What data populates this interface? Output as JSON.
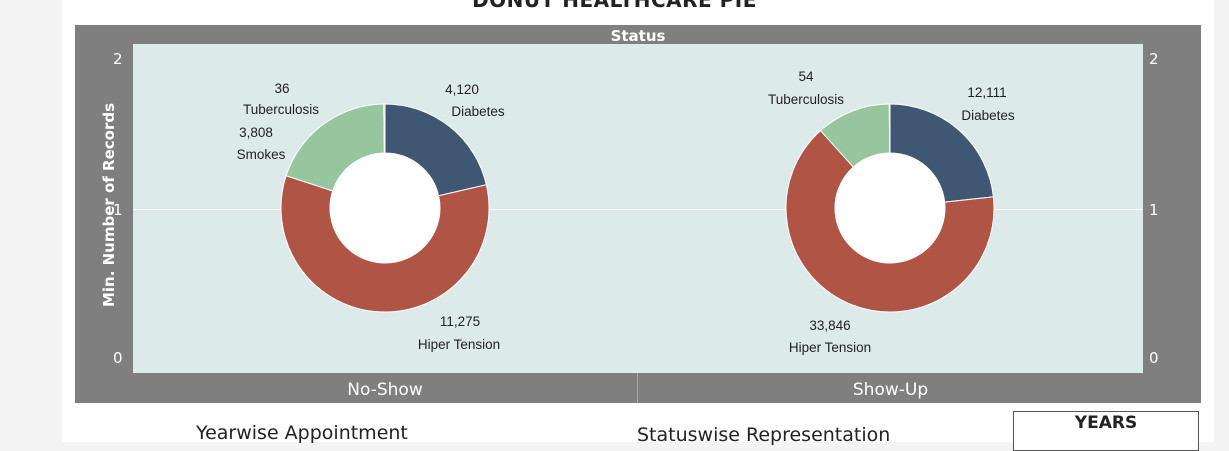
{
  "dashboard": {
    "title": "DONUT HEALTHCARE PIE",
    "column_header": "Status",
    "y_axis_label": "Min. Number of Records",
    "y_ticks": [
      "2",
      "1",
      "0"
    ],
    "bottom": {
      "left_title": "Yearwise Appointment",
      "middle_title": "Statuswise Representation",
      "years_label": "YEARS"
    }
  },
  "colors": {
    "Diabetes": "#3f5773",
    "Hiper Tension": "#b05545",
    "Smokes": "#97c69e",
    "Tuberculosis": "#b9b34f"
  },
  "chart_data": {
    "type": "pie",
    "title": "DONUT HEALTHCARE PIE",
    "facet_label": "Status",
    "ylabel": "Min. Number of Records",
    "ylim": [
      0,
      2
    ],
    "grid": true,
    "categories": [
      "Diabetes",
      "Hiper Tension",
      "Smokes",
      "Tuberculosis"
    ],
    "series": [
      {
        "name": "No-Show",
        "values": [
          4120,
          11275,
          3808,
          36
        ],
        "labels": [
          "4,120",
          "11,275",
          "3,808",
          "36"
        ]
      },
      {
        "name": "Show-Up",
        "values": [
          12111,
          33846,
          6000,
          54
        ],
        "labels": [
          "12,111",
          "33,846",
          "",
          "54"
        ]
      }
    ]
  }
}
